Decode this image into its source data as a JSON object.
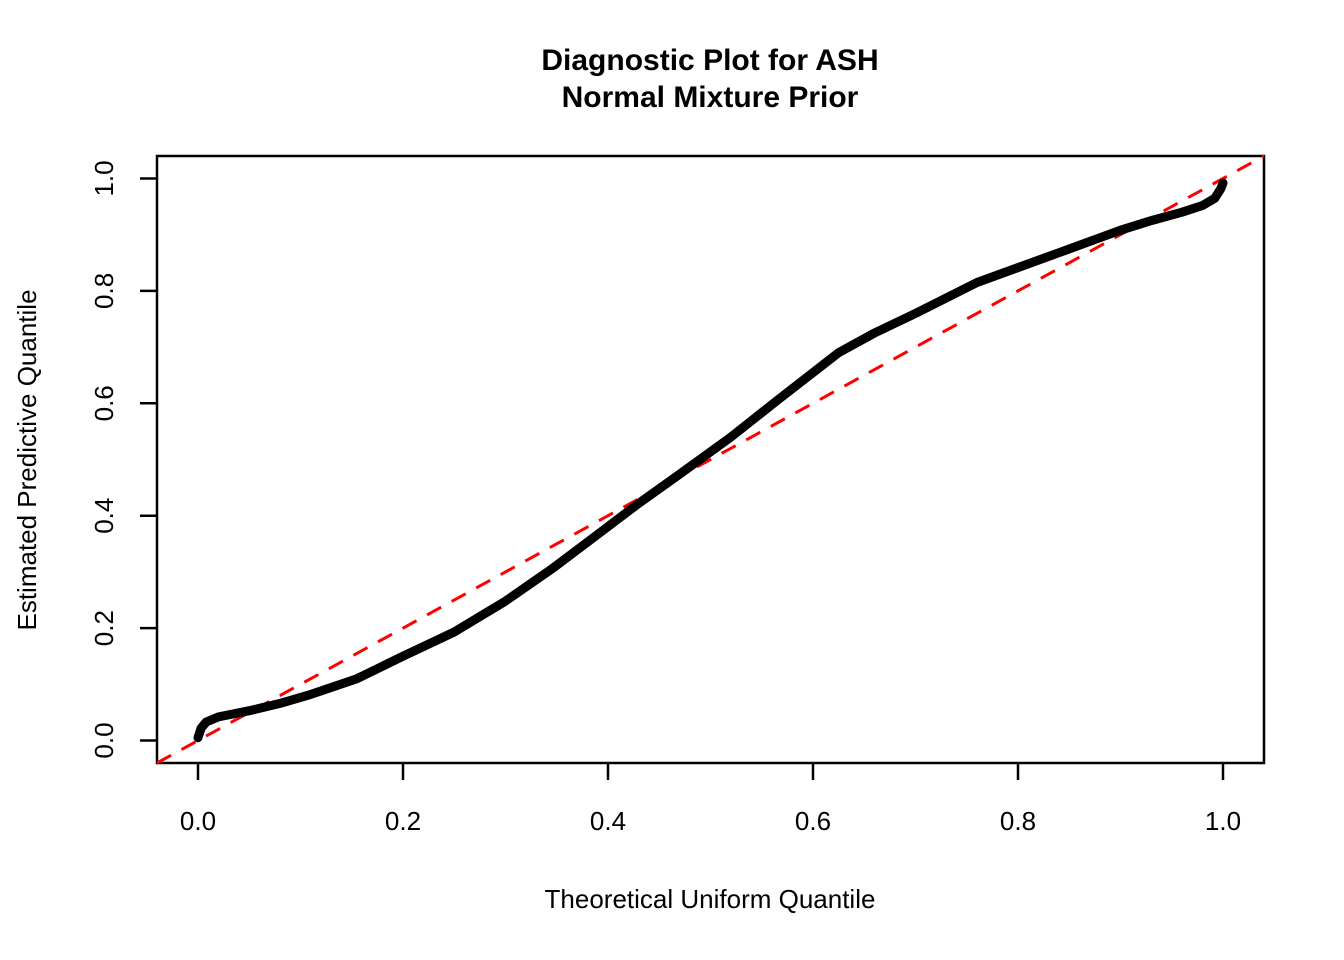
{
  "title": {
    "line1": "Diagnostic Plot for ASH",
    "line2": "Normal Mixture Prior"
  },
  "axes": {
    "x_label": "Theoretical Uniform Quantile",
    "y_label": "Estimated Predictive Quantile",
    "x_ticks": [
      "0.0",
      "0.2",
      "0.4",
      "0.6",
      "0.8",
      "1.0"
    ],
    "y_ticks": [
      "0.0",
      "0.2",
      "0.4",
      "0.6",
      "0.8",
      "1.0"
    ]
  },
  "colors": {
    "curve": "#000000",
    "reference_line": "#FF0000",
    "axis": "#000000",
    "background": "#FFFFFF"
  },
  "chart_data": {
    "type": "line",
    "title": "Diagnostic Plot for ASH Normal Mixture Prior",
    "xlabel": "Theoretical Uniform Quantile",
    "ylabel": "Estimated Predictive Quantile",
    "xlim": [
      -0.04,
      1.04
    ],
    "ylim": [
      -0.04,
      1.04
    ],
    "x_tick_values": [
      0.0,
      0.2,
      0.4,
      0.6,
      0.8,
      1.0
    ],
    "y_tick_values": [
      0.0,
      0.2,
      0.4,
      0.6,
      0.8,
      1.0
    ],
    "grid": false,
    "legend": null,
    "series": [
      {
        "name": "estimated-predictive-quantile-curve",
        "color": "#000000",
        "style": "solid",
        "width": 9,
        "points": [
          [
            0.0,
            0.005
          ],
          [
            0.003,
            0.022
          ],
          [
            0.008,
            0.033
          ],
          [
            0.02,
            0.042
          ],
          [
            0.05,
            0.053
          ],
          [
            0.08,
            0.066
          ],
          [
            0.11,
            0.082
          ],
          [
            0.155,
            0.11
          ],
          [
            0.2,
            0.15
          ],
          [
            0.25,
            0.193
          ],
          [
            0.3,
            0.248
          ],
          [
            0.345,
            0.305
          ],
          [
            0.39,
            0.367
          ],
          [
            0.43,
            0.422
          ],
          [
            0.47,
            0.474
          ],
          [
            0.52,
            0.54
          ],
          [
            0.565,
            0.605
          ],
          [
            0.625,
            0.69
          ],
          [
            0.66,
            0.725
          ],
          [
            0.7,
            0.76
          ],
          [
            0.76,
            0.815
          ],
          [
            0.84,
            0.868
          ],
          [
            0.9,
            0.908
          ],
          [
            0.93,
            0.925
          ],
          [
            0.96,
            0.94
          ],
          [
            0.98,
            0.952
          ],
          [
            0.992,
            0.965
          ],
          [
            0.998,
            0.982
          ],
          [
            1.0,
            0.992
          ]
        ]
      },
      {
        "name": "reference-diagonal",
        "color": "#FF0000",
        "style": "dashed",
        "width": 3,
        "points": [
          [
            -0.04,
            -0.04
          ],
          [
            1.04,
            1.04
          ]
        ]
      }
    ]
  }
}
